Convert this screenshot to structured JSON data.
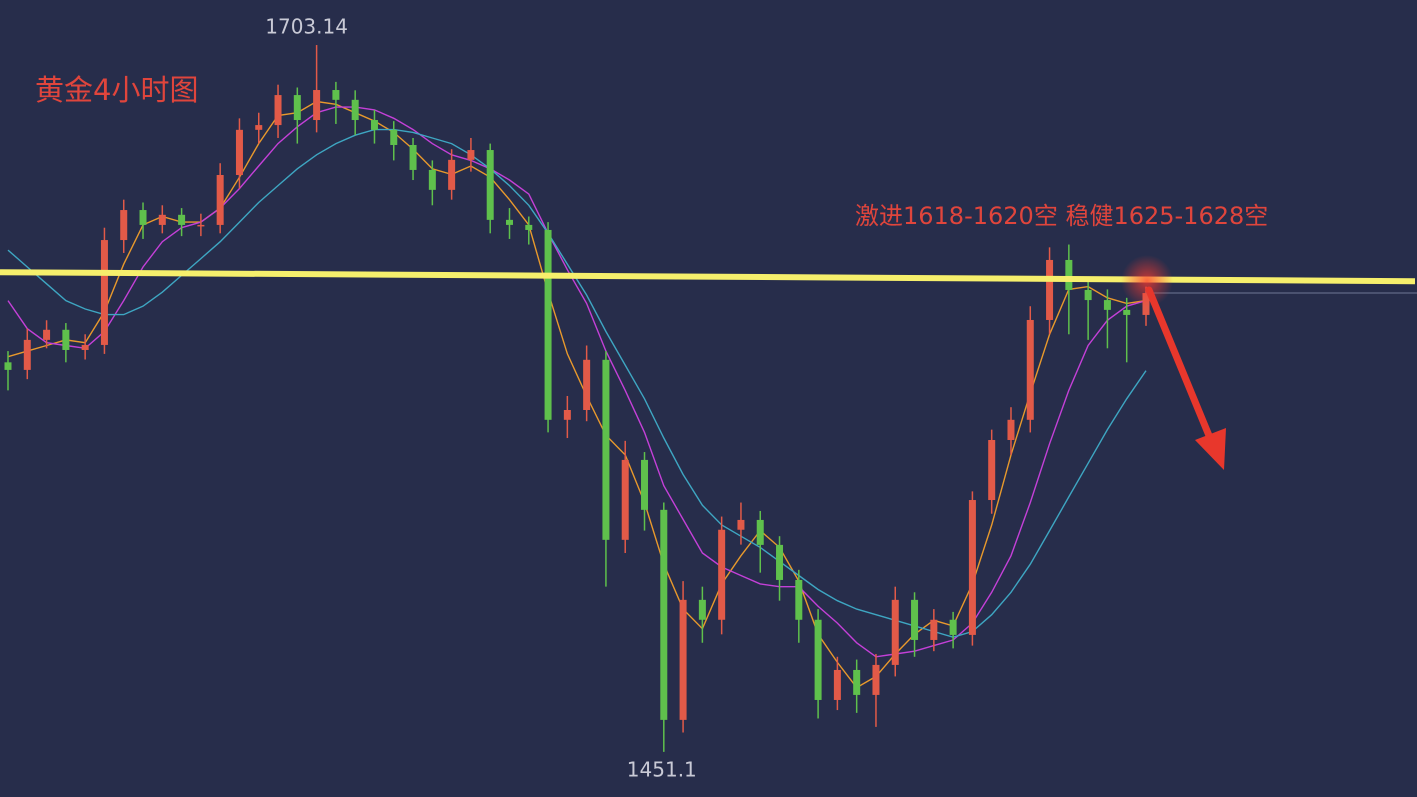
{
  "chart_data": {
    "type": "candlestick",
    "title": "黄金4小时图",
    "annotation": "激进1618-1620空 稳健1625-1628空",
    "up_color": "#e25a48",
    "down_color": "#5fc04c",
    "ylim": [
      1435,
      1719.2
    ],
    "open": [
      1590,
      1587.3,
      1598.0,
      1601.6,
      1594.4,
      1596.2,
      1633.6,
      1644.3,
      1639.0,
      1642.6,
      1639.0,
      1639.0,
      1656.8,
      1672.9,
      1674.6,
      1685.3,
      1676.4,
      1687.1,
      1683.6,
      1676.4,
      1672.9,
      1667.5,
      1658.6,
      1651.5,
      1662.2,
      1665.7,
      1640.8,
      1639.0,
      1637.2,
      1569.5,
      1573.0,
      1590.9,
      1526.7,
      1555.2,
      1537.4,
      1462.5,
      1505.3,
      1498.2,
      1530.3,
      1533.8,
      1524.9,
      1512.4,
      1498.2,
      1469.6,
      1480.3,
      1471.4,
      1482.1,
      1505.3,
      1491.0,
      1498.2,
      1492.8,
      1540.9,
      1562.3,
      1569.5,
      1605.1,
      1626.5,
      1615.8,
      1612.2,
      1608.7,
      1606.9
    ],
    "high": [
      1594,
      1602,
      1605,
      1604,
      1600,
      1638,
      1648,
      1647,
      1646,
      1645,
      1643,
      1661,
      1677,
      1679,
      1689,
      1688,
      1703.14,
      1690,
      1687,
      1680,
      1676,
      1670,
      1662,
      1666,
      1670,
      1668,
      1645,
      1642,
      1640,
      1578,
      1596,
      1594,
      1562,
      1558,
      1540,
      1512,
      1510,
      1535,
      1540,
      1537,
      1528,
      1516,
      1502,
      1485,
      1484,
      1486,
      1510,
      1508,
      1502,
      1501,
      1544,
      1566,
      1574,
      1610,
      1631,
      1632,
      1620,
      1616,
      1613,
      1617
    ],
    "low": [
      1580,
      1584,
      1595,
      1590,
      1591,
      1593,
      1629,
      1634,
      1636,
      1635,
      1635,
      1636,
      1652,
      1668,
      1670,
      1668,
      1672,
      1675,
      1671,
      1668,
      1662,
      1655,
      1646,
      1648,
      1658,
      1636,
      1634,
      1632,
      1565,
      1563,
      1569,
      1510,
      1522,
      1530,
      1451.1,
      1458,
      1490,
      1493,
      1525,
      1515,
      1505,
      1490,
      1463,
      1466,
      1465,
      1460,
      1478,
      1485,
      1487,
      1488,
      1489,
      1536,
      1557,
      1565,
      1600,
      1600,
      1598,
      1595,
      1590,
      1603
    ],
    "close": [
      1587.3,
      1598.0,
      1601.6,
      1594.4,
      1596.2,
      1633.6,
      1644.3,
      1639.0,
      1642.6,
      1639.0,
      1639.0,
      1656.8,
      1672.9,
      1674.6,
      1685.3,
      1676.4,
      1687.1,
      1683.6,
      1676.4,
      1672.9,
      1667.5,
      1658.6,
      1651.5,
      1662.2,
      1665.7,
      1640.8,
      1639.0,
      1637.2,
      1569.5,
      1573.0,
      1590.9,
      1526.7,
      1555.2,
      1537.4,
      1462.5,
      1505.3,
      1498.2,
      1530.3,
      1533.8,
      1524.9,
      1512.4,
      1498.2,
      1469.6,
      1480.3,
      1471.4,
      1482.1,
      1505.3,
      1491.0,
      1498.2,
      1492.8,
      1540.9,
      1562.3,
      1569.5,
      1605.1,
      1626.5,
      1615.8,
      1612.2,
      1608.7,
      1606.9,
      1614.7
    ],
    "lines": [
      {
        "color": "#e8992c",
        "values": [
          1592,
          1594,
          1596,
          1598,
          1597,
          1608,
          1625,
          1639,
          1642,
          1640,
          1640,
          1645,
          1656,
          1668,
          1678,
          1679,
          1683,
          1682,
          1679,
          1676,
          1672,
          1666,
          1659,
          1657,
          1660,
          1656,
          1648,
          1639,
          1615,
          1593,
          1578,
          1564,
          1557,
          1540,
          1518,
          1502,
          1495,
          1511,
          1521,
          1530,
          1524,
          1512,
          1493,
          1483,
          1474,
          1478,
          1486,
          1493,
          1498,
          1496,
          1511,
          1532,
          1557,
          1579,
          1600,
          1616,
          1617,
          1613,
          1611,
          1612
        ]
      },
      {
        "color": "#c440d8",
        "values": [
          1612,
          1602,
          1597,
          1596,
          1595,
          1601,
          1612,
          1624,
          1633,
          1638,
          1640,
          1645,
          1652,
          1660,
          1668,
          1674,
          1679,
          1681,
          1681,
          1680,
          1677,
          1673,
          1668,
          1664,
          1662,
          1659,
          1655,
          1650,
          1636,
          1623,
          1611,
          1594,
          1580,
          1565,
          1546,
          1534,
          1522,
          1517,
          1514,
          1511,
          1510,
          1510,
          1503,
          1497,
          1490,
          1485,
          1486,
          1487,
          1489,
          1491,
          1497,
          1508,
          1521,
          1540,
          1561,
          1580,
          1596,
          1605,
          1610,
          1612
        ]
      },
      {
        "color": "#3ea6c2",
        "values": [
          1630,
          1624,
          1618,
          1612,
          1609,
          1607,
          1607,
          1610,
          1615,
          1621,
          1627,
          1633,
          1640,
          1647,
          1653,
          1659,
          1664,
          1668,
          1671,
          1673,
          1673,
          1672,
          1670,
          1668,
          1664,
          1659,
          1653,
          1646,
          1636,
          1625,
          1614,
          1601,
          1589,
          1577,
          1563,
          1550,
          1539,
          1532,
          1528,
          1524,
          1519,
          1514,
          1509,
          1505,
          1502,
          1500,
          1498,
          1496,
          1494,
          1492,
          1494,
          1500,
          1508,
          1518,
          1530,
          1542,
          1554,
          1566,
          1577,
          1587
        ]
      }
    ],
    "level": {
      "value": 1620,
      "color": "#f6ef6c"
    }
  }
}
